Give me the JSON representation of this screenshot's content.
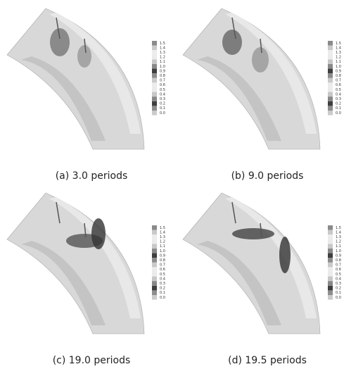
{
  "panels": [
    {
      "caption": "(a) 3.0 periods",
      "legend": [
        "1.5",
        "1.4",
        "1.3",
        "1.2",
        "1.1",
        "1.0",
        "0.9",
        "0.8",
        "0.7",
        "0.6",
        "0.5",
        "0.4",
        "0.3",
        "0.2",
        "0.1",
        "0.0"
      ]
    },
    {
      "caption": "(b) 9.0 periods",
      "legend": [
        "1.5",
        "1.4",
        "1.3",
        "1.2",
        "1.1",
        "1.0",
        "0.9",
        "0.8",
        "0.7",
        "0.6",
        "0.5",
        "0.4",
        "0.3",
        "0.2",
        "0.1",
        "0.0"
      ]
    },
    {
      "caption": "(c) 19.0 periods",
      "legend": [
        "1.5",
        "1.4",
        "1.3",
        "1.2",
        "1.1",
        "1.0",
        "0.9",
        "0.8",
        "0.7",
        "0.6",
        "0.5",
        "0.4",
        "0.3",
        "0.2",
        "0.1",
        "0.0"
      ]
    },
    {
      "caption": "(d) 19.5 periods",
      "legend": [
        "1.5",
        "1.4",
        "1.3",
        "1.2",
        "1.1",
        "1.0",
        "0.9",
        "0.8",
        "0.7",
        "0.6",
        "0.5",
        "0.4",
        "0.3",
        "0.2",
        "0.1",
        "0.0"
      ]
    }
  ]
}
